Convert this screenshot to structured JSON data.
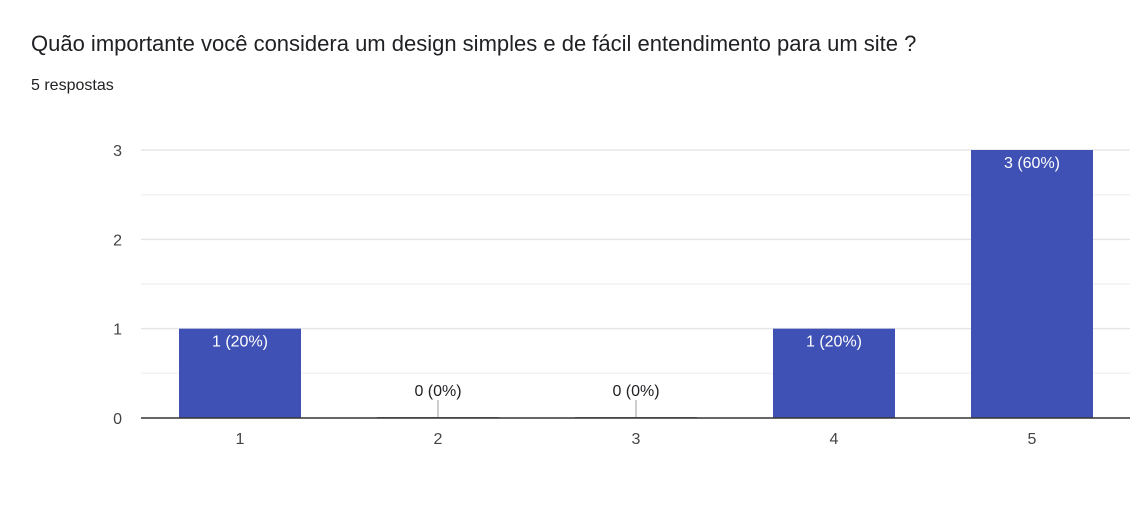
{
  "question": {
    "title": "Quão importante você considera um design simples e de fácil entendimento para um site ?",
    "responses": "5 respostas"
  },
  "colors": {
    "bar": "#3f51b5",
    "grid": "#eeeeee",
    "axis": "#333333",
    "label_inside": "#ffffff",
    "label_outside": "#202124"
  },
  "chart_data": {
    "type": "bar",
    "categories": [
      "1",
      "2",
      "3",
      "4",
      "5"
    ],
    "values": [
      1,
      0,
      0,
      1,
      3
    ],
    "data_labels": [
      "1 (20%)",
      "0 (0%)",
      "0 (0%)",
      "1 (20%)",
      "3 (60%)"
    ],
    "ylim": [
      0,
      3
    ],
    "yticks": [
      0,
      1,
      2,
      3
    ],
    "title": "Quão importante você considera um design simples e de fácil entendimento para um site ?",
    "xlabel": "",
    "ylabel": "",
    "grid": true,
    "legend": "none"
  }
}
